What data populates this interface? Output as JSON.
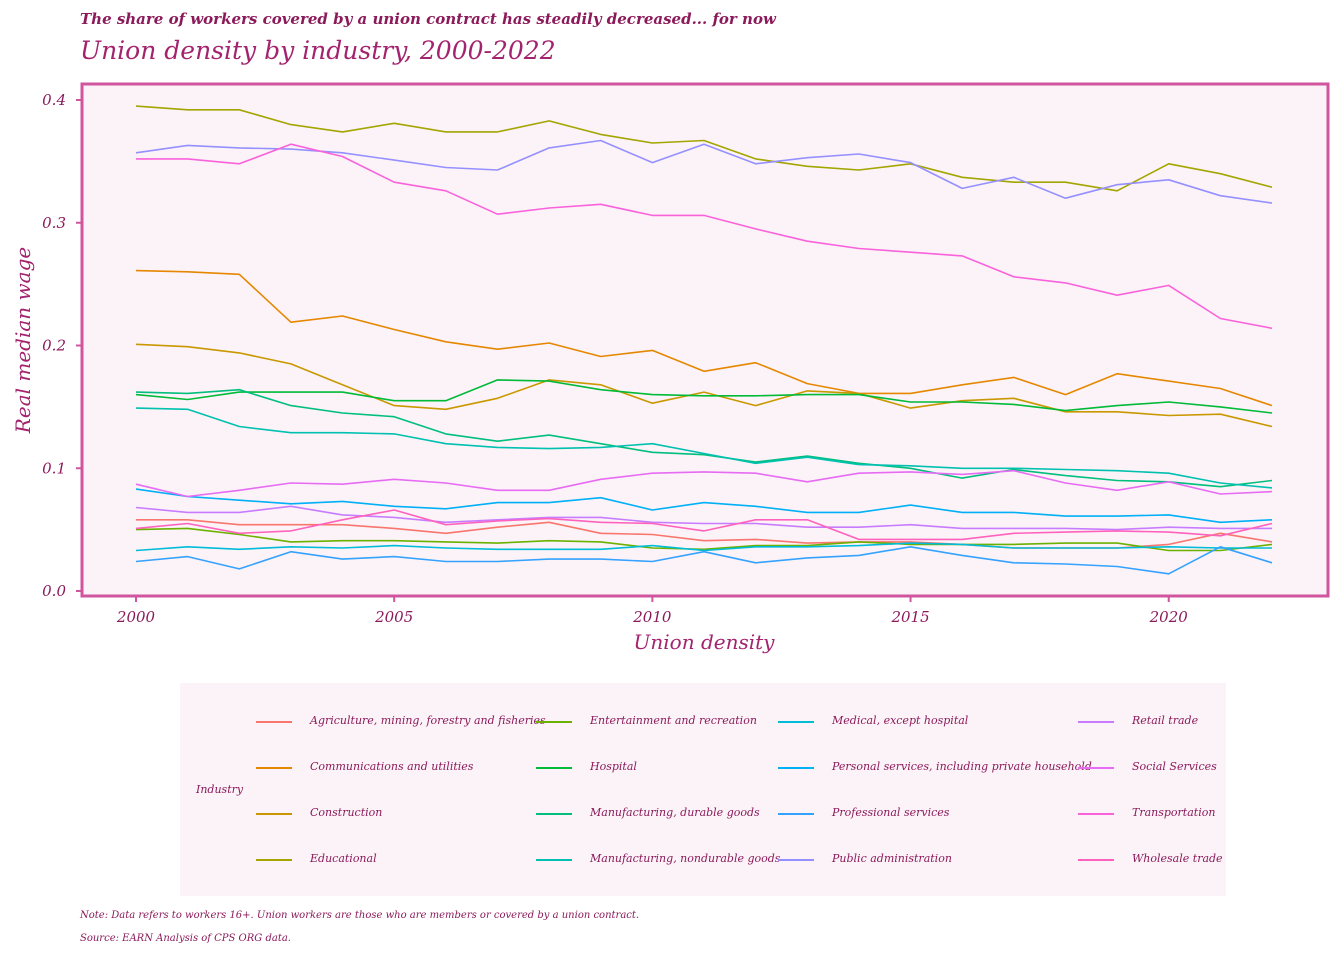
{
  "header": {
    "subtitle": "The share of workers covered by a union contract has steadily decreased... for now",
    "title": "Union density by industry, 2000-2022"
  },
  "footer": {
    "note": "Note: Data refers to workers 16+. Union workers are those who are members or covered by a union contract.",
    "source": "Source: EARN Analysis of CPS ORG data."
  },
  "legend": {
    "title": "Industry",
    "position": "bottom"
  },
  "colors": {
    "panel_background": "#fcf3f8",
    "panel_border": "#d1559e",
    "text": "#8b1a5a"
  },
  "chart_data": {
    "type": "line",
    "title": "Union density by industry, 2000-2022",
    "subtitle": "The share of workers covered by a union contract has steadily decreased... for now",
    "xlabel": "Union density",
    "ylabel": "Real median wage",
    "xlim": [
      2000,
      2022
    ],
    "ylim": [
      0,
      0.4
    ],
    "x_ticks": [
      "2000",
      "2005",
      "2010",
      "2015",
      "2020"
    ],
    "y_ticks": [
      "0.0",
      "0.1",
      "0.2",
      "0.3",
      "0.4"
    ],
    "grid": false,
    "x": [
      2000,
      2001,
      2002,
      2003,
      2004,
      2005,
      2006,
      2007,
      2008,
      2009,
      2010,
      2011,
      2012,
      2013,
      2014,
      2015,
      2016,
      2017,
      2018,
      2019,
      2020,
      2021,
      2022
    ],
    "series": [
      {
        "name": "Agriculture, mining, forestry and fisheries",
        "color": "#f8766d",
        "values": [
          0.058,
          0.058,
          0.054,
          0.054,
          0.054,
          0.051,
          0.047,
          0.052,
          0.056,
          0.047,
          0.046,
          0.041,
          0.042,
          0.039,
          0.04,
          0.04,
          0.038,
          0.035,
          0.035,
          0.035,
          0.038,
          0.047,
          0.04
        ]
      },
      {
        "name": "Communications and utilities",
        "color": "#e58700",
        "values": [
          0.261,
          0.26,
          0.258,
          0.219,
          0.224,
          0.213,
          0.203,
          0.197,
          0.202,
          0.191,
          0.196,
          0.179,
          0.186,
          0.169,
          0.161,
          0.161,
          0.168,
          0.174,
          0.16,
          0.177,
          0.171,
          0.165,
          0.151
        ]
      },
      {
        "name": "Construction",
        "color": "#c99800",
        "values": [
          0.201,
          0.199,
          0.194,
          0.185,
          0.168,
          0.151,
          0.148,
          0.157,
          0.172,
          0.168,
          0.153,
          0.162,
          0.151,
          0.163,
          0.161,
          0.149,
          0.155,
          0.157,
          0.146,
          0.146,
          0.143,
          0.144,
          0.134
        ]
      },
      {
        "name": "Educational",
        "color": "#a3a500",
        "values": [
          0.395,
          0.392,
          0.392,
          0.38,
          0.374,
          0.381,
          0.374,
          0.374,
          0.383,
          0.372,
          0.365,
          0.367,
          0.352,
          0.346,
          0.343,
          0.348,
          0.337,
          0.333,
          0.333,
          0.326,
          0.348,
          0.34,
          0.329
        ]
      },
      {
        "name": "Entertainment and recreation",
        "color": "#6bb100",
        "values": [
          0.05,
          0.051,
          0.046,
          0.04,
          0.041,
          0.041,
          0.04,
          0.039,
          0.041,
          0.04,
          0.035,
          0.034,
          0.037,
          0.037,
          0.04,
          0.038,
          0.038,
          0.038,
          0.039,
          0.039,
          0.033,
          0.033,
          0.038
        ]
      },
      {
        "name": "Hospital",
        "color": "#00ba38",
        "values": [
          0.16,
          0.156,
          0.162,
          0.162,
          0.162,
          0.155,
          0.155,
          0.172,
          0.171,
          0.164,
          0.16,
          0.159,
          0.159,
          0.16,
          0.16,
          0.154,
          0.154,
          0.152,
          0.147,
          0.151,
          0.154,
          0.15,
          0.145
        ]
      },
      {
        "name": "Manufacturing, durable goods",
        "color": "#00bf7d",
        "values": [
          0.162,
          0.161,
          0.164,
          0.151,
          0.145,
          0.142,
          0.128,
          0.122,
          0.127,
          0.12,
          0.113,
          0.111,
          0.105,
          0.11,
          0.104,
          0.1,
          0.092,
          0.099,
          0.094,
          0.09,
          0.089,
          0.085,
          0.09
        ]
      },
      {
        "name": "Manufacturing, nondurable goods",
        "color": "#00c0af",
        "values": [
          0.149,
          0.148,
          0.134,
          0.129,
          0.129,
          0.128,
          0.12,
          0.117,
          0.116,
          0.117,
          0.12,
          0.112,
          0.104,
          0.109,
          0.103,
          0.102,
          0.1,
          0.1,
          0.099,
          0.098,
          0.096,
          0.088,
          0.084
        ]
      },
      {
        "name": "Medical, except hospital",
        "color": "#00bcd8",
        "values": [
          0.033,
          0.036,
          0.034,
          0.036,
          0.035,
          0.037,
          0.035,
          0.034,
          0.034,
          0.034,
          0.037,
          0.033,
          0.036,
          0.036,
          0.037,
          0.039,
          0.038,
          0.035,
          0.035,
          0.035,
          0.036,
          0.035,
          0.035
        ]
      },
      {
        "name": "Personal services, including private household",
        "color": "#00b0f6",
        "values": [
          0.083,
          0.077,
          0.074,
          0.071,
          0.073,
          0.069,
          0.067,
          0.072,
          0.072,
          0.076,
          0.066,
          0.072,
          0.069,
          0.064,
          0.064,
          0.07,
          0.064,
          0.064,
          0.061,
          0.061,
          0.062,
          0.056,
          0.058
        ]
      },
      {
        "name": "Professional services",
        "color": "#35a2ff",
        "values": [
          0.024,
          0.028,
          0.018,
          0.032,
          0.026,
          0.028,
          0.024,
          0.024,
          0.026,
          0.026,
          0.024,
          0.032,
          0.023,
          0.027,
          0.029,
          0.036,
          0.029,
          0.023,
          0.022,
          0.02,
          0.014,
          0.036,
          0.023
        ]
      },
      {
        "name": "Public administration",
        "color": "#9590ff",
        "values": [
          0.357,
          0.363,
          0.361,
          0.36,
          0.357,
          0.351,
          0.345,
          0.343,
          0.361,
          0.367,
          0.349,
          0.364,
          0.348,
          0.353,
          0.356,
          0.349,
          0.328,
          0.337,
          0.32,
          0.331,
          0.335,
          0.322,
          0.316
        ]
      },
      {
        "name": "Retail trade",
        "color": "#c77cff",
        "values": [
          0.068,
          0.064,
          0.064,
          0.069,
          0.062,
          0.06,
          0.056,
          0.058,
          0.06,
          0.06,
          0.056,
          0.055,
          0.055,
          0.052,
          0.052,
          0.054,
          0.051,
          0.051,
          0.051,
          0.05,
          0.052,
          0.051,
          0.051
        ]
      },
      {
        "name": "Social Services",
        "color": "#e76bf3",
        "values": [
          0.087,
          0.077,
          0.082,
          0.088,
          0.087,
          0.091,
          0.088,
          0.082,
          0.082,
          0.091,
          0.096,
          0.097,
          0.096,
          0.089,
          0.096,
          0.097,
          0.095,
          0.098,
          0.088,
          0.082,
          0.089,
          0.079,
          0.081
        ]
      },
      {
        "name": "Transportation",
        "color": "#fa62db",
        "values": [
          0.352,
          0.352,
          0.348,
          0.364,
          0.354,
          0.333,
          0.326,
          0.307,
          0.312,
          0.315,
          0.306,
          0.306,
          0.295,
          0.285,
          0.279,
          0.276,
          0.273,
          0.256,
          0.251,
          0.241,
          0.249,
          0.222,
          0.214
        ]
      },
      {
        "name": "Wholesale trade",
        "color": "#ff62bc",
        "values": [
          0.051,
          0.055,
          0.047,
          0.049,
          0.058,
          0.066,
          0.054,
          0.057,
          0.059,
          0.056,
          0.055,
          0.049,
          0.058,
          0.058,
          0.042,
          0.042,
          0.042,
          0.047,
          0.048,
          0.049,
          0.048,
          0.045,
          0.055
        ]
      }
    ]
  }
}
